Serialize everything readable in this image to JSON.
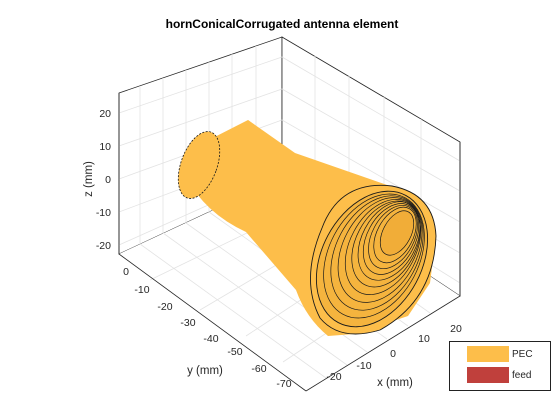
{
  "figure": {
    "title": "hornConicalCorrugated antenna element",
    "axes": {
      "z": {
        "label": "z (mm)",
        "ticks": [
          "20",
          "10",
          "0",
          "-10",
          "-20"
        ]
      },
      "y": {
        "label": "y (mm)",
        "ticks": [
          "0",
          "-10",
          "-20",
          "-30",
          "-40",
          "-50",
          "-60",
          "-70"
        ]
      },
      "x": {
        "label": "x (mm)",
        "ticks": [
          "-20",
          "-10",
          "0",
          "10",
          "20"
        ]
      }
    },
    "grid": "on",
    "colors": {
      "pec": "#fdbe4a",
      "pec_edge": "#1a1a1a",
      "feed": "#c0403c",
      "grid": "#e3e3e3",
      "axis_edge": "#262626"
    }
  },
  "legend": {
    "position": "bottom-right",
    "items": [
      {
        "label": "PEC",
        "color": "#fdbe4a"
      },
      {
        "label": "feed",
        "color": "#c0403c"
      }
    ]
  }
}
